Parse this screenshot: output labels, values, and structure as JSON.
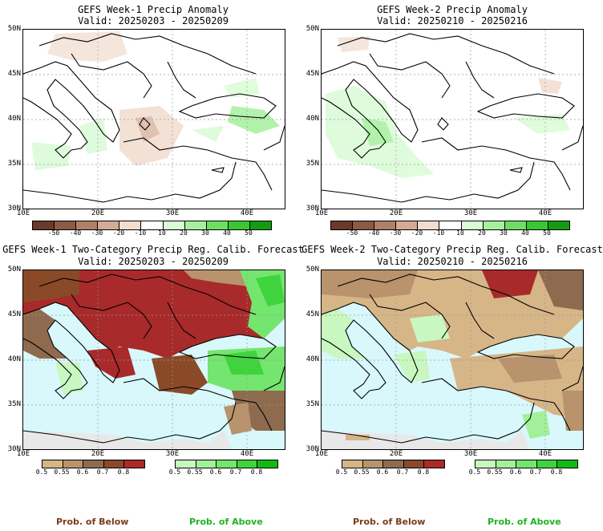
{
  "panels": [
    {
      "title": "GEFS Week-1 Precip Anomaly",
      "valid": "Valid: 20250203 - 20250209"
    },
    {
      "title": "GEFS Week-2 Precip Anomaly",
      "valid": "Valid: 20250210 - 20250216"
    },
    {
      "title": "GEFS Week-1 Two-Category Precip Reg. Calib. Forecast",
      "valid": "Valid: 20250203 - 20250209"
    },
    {
      "title": "GEFS Week-2 Two-Category Precip Reg. Calib. Forecast",
      "valid": "Valid: 20250210 - 20250216"
    }
  ],
  "axes": {
    "lat": [
      "50N",
      "45N",
      "40N",
      "35N",
      "30N"
    ],
    "lon": [
      "10E",
      "20E",
      "30E",
      "40E"
    ]
  },
  "anomaly_colorbar": {
    "labels": [
      "-50",
      "-40",
      "-30",
      "-20",
      "-10",
      "10",
      "20",
      "30",
      "40",
      "50"
    ],
    "colors": [
      "#6b3a2a",
      "#8c5a45",
      "#b08068",
      "#d4ab96",
      "#f1dccf",
      "#ffffff",
      "#d9fbd5",
      "#a6f09d",
      "#6ede62",
      "#3bc634",
      "#149b12"
    ]
  },
  "prob_colorbar": {
    "below_labels": [
      "0.5",
      "0.55",
      "0.6",
      "0.7",
      "0.8"
    ],
    "below_colors": [
      "#d6b587",
      "#b8936c",
      "#8e6b4f",
      "#8a4a28",
      "#a82a2a"
    ],
    "above_labels": [
      "0.5",
      "0.55",
      "0.6",
      "0.7",
      "0.8"
    ],
    "above_colors": [
      "#c9f7c0",
      "#a3f09a",
      "#74e56e",
      "#3fd43d",
      "#13b913"
    ]
  },
  "legend": {
    "below": "Prob. of Below",
    "above": "Prob. of Above"
  },
  "colors": {
    "below_text": "#7b3a1e",
    "above_text": "#1fb21f",
    "sea": "#d8f8fb"
  }
}
